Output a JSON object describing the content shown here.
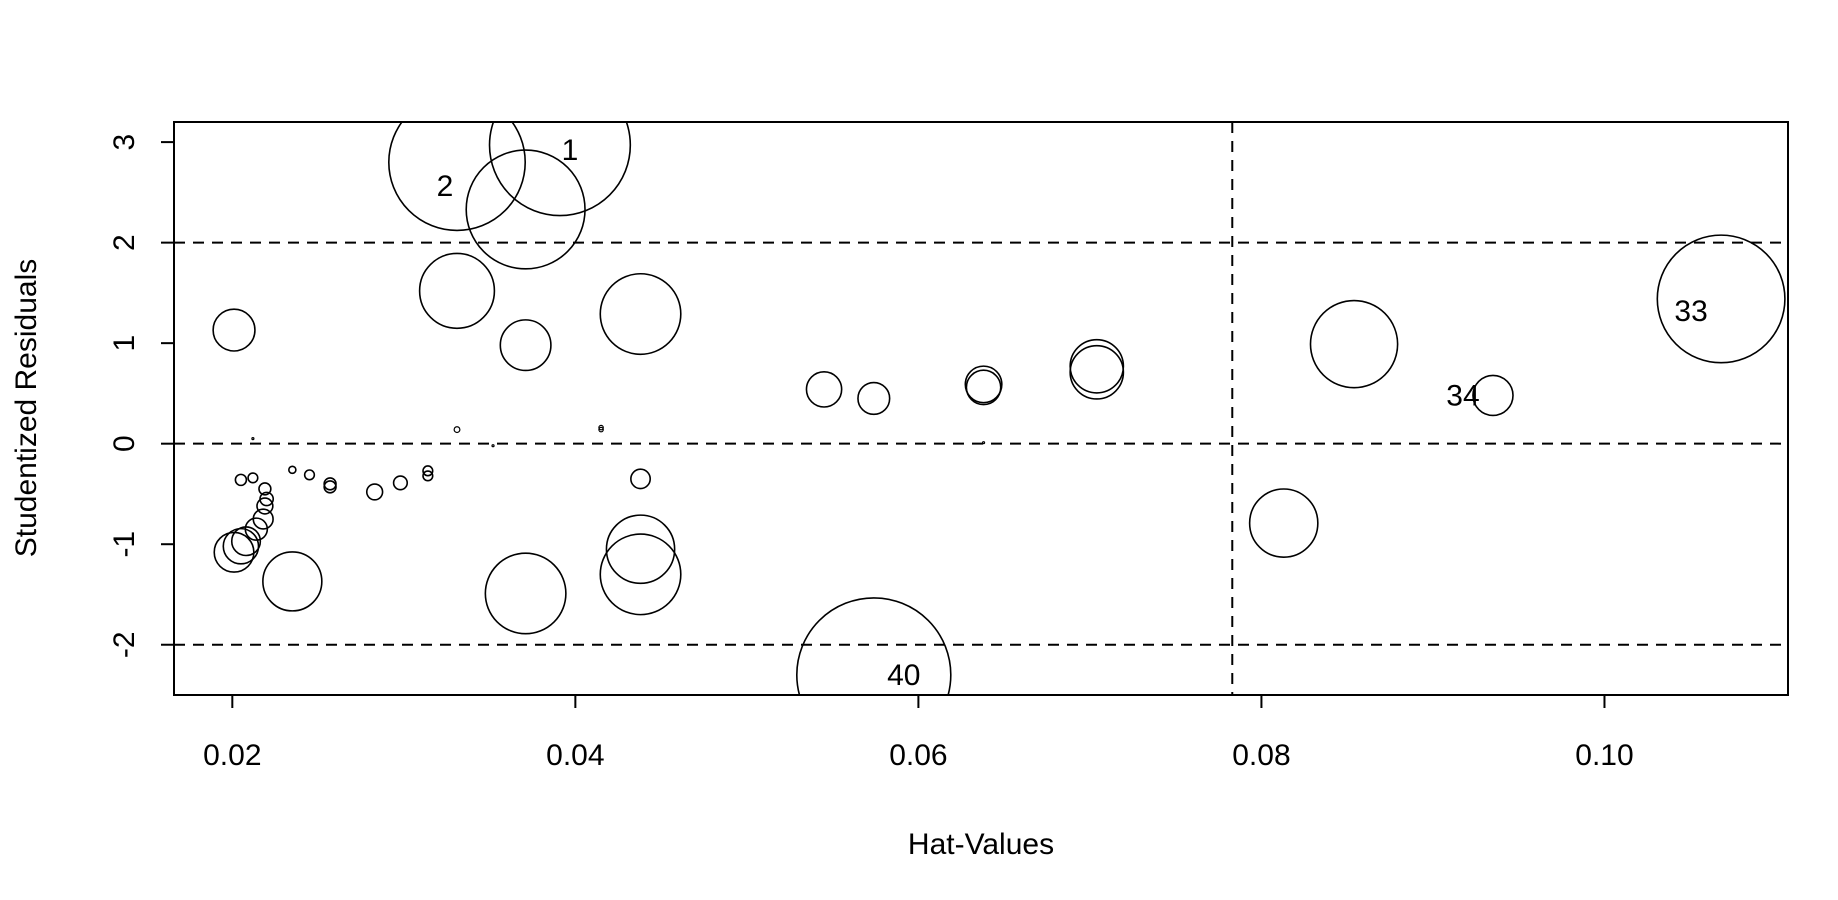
{
  "chart_data": {
    "type": "scatter",
    "title": "",
    "xlabel": "Hat-Values",
    "ylabel": "Studentized Residuals",
    "xlim": [
      0.0166,
      0.1107
    ],
    "ylim": [
      -2.5,
      3.2
    ],
    "xticks": [
      0.02,
      0.04,
      0.06,
      0.08,
      0.1
    ],
    "xtick_labels": [
      "0.02",
      "0.04",
      "0.06",
      "0.08",
      "0.10"
    ],
    "yticks": [
      -2,
      -1,
      0,
      1,
      2,
      3
    ],
    "ytick_labels": [
      "-2",
      "-1",
      "0",
      "1",
      "2",
      "3"
    ],
    "reference_lines": {
      "horizontal": [
        -2,
        0,
        2
      ],
      "vertical": [
        0.0783
      ],
      "style": "dashed"
    },
    "bubble_size_measure": "Cook's distance (relative)",
    "points": [
      {
        "hat": 0.0391,
        "rstudent": 2.97,
        "size": 0.32,
        "label": "1"
      },
      {
        "hat": 0.0331,
        "rstudent": 2.8,
        "size": 0.31,
        "label": "2"
      },
      {
        "hat": 0.0371,
        "rstudent": 2.33,
        "size": 0.27
      },
      {
        "hat": 0.0331,
        "rstudent": 1.52,
        "size": 0.17
      },
      {
        "hat": 0.0371,
        "rstudent": 0.98,
        "size": 0.115
      },
      {
        "hat": 0.0438,
        "rstudent": 1.29,
        "size": 0.183
      },
      {
        "hat": 0.0201,
        "rstudent": 1.13,
        "size": 0.095
      },
      {
        "hat": 0.0545,
        "rstudent": 0.54,
        "size": 0.08
      },
      {
        "hat": 0.0574,
        "rstudent": 0.45,
        "size": 0.072
      },
      {
        "hat": 0.0638,
        "rstudent": 0.59,
        "size": 0.083
      },
      {
        "hat": 0.0638,
        "rstudent": 0.56,
        "size": 0.078
      },
      {
        "hat": 0.0704,
        "rstudent": 0.77,
        "size": 0.121
      },
      {
        "hat": 0.0704,
        "rstudent": 0.71,
        "size": 0.121
      },
      {
        "hat": 0.0854,
        "rstudent": 0.99,
        "size": 0.198
      },
      {
        "hat": 0.0935,
        "rstudent": 0.48,
        "size": 0.091,
        "label": "34"
      },
      {
        "hat": 0.1068,
        "rstudent": 1.44,
        "size": 0.29,
        "label": "33"
      },
      {
        "hat": 0.0813,
        "rstudent": -0.79,
        "size": 0.155
      },
      {
        "hat": 0.0574,
        "rstudent": -2.3,
        "size": 0.35,
        "label": "40"
      },
      {
        "hat": 0.0371,
        "rstudent": -1.49,
        "size": 0.183
      },
      {
        "hat": 0.0438,
        "rstudent": -1.05,
        "size": 0.155
      },
      {
        "hat": 0.0438,
        "rstudent": -1.3,
        "size": 0.183
      },
      {
        "hat": 0.0438,
        "rstudent": -0.35,
        "size": 0.044
      },
      {
        "hat": 0.0235,
        "rstudent": -1.37,
        "size": 0.134
      },
      {
        "hat": 0.0201,
        "rstudent": -1.08,
        "size": 0.09
      },
      {
        "hat": 0.0205,
        "rstudent": -1.02,
        "size": 0.08
      },
      {
        "hat": 0.0208,
        "rstudent": -0.97,
        "size": 0.065
      },
      {
        "hat": 0.0214,
        "rstudent": -0.85,
        "size": 0.05
      },
      {
        "hat": 0.0218,
        "rstudent": -0.75,
        "size": 0.045
      },
      {
        "hat": 0.0219,
        "rstudent": -0.62,
        "size": 0.036
      },
      {
        "hat": 0.022,
        "rstudent": -0.55,
        "size": 0.03
      },
      {
        "hat": 0.0219,
        "rstudent": -0.45,
        "size": 0.027
      },
      {
        "hat": 0.0205,
        "rstudent": -0.36,
        "size": 0.025
      },
      {
        "hat": 0.0212,
        "rstudent": -0.34,
        "size": 0.022
      },
      {
        "hat": 0.0235,
        "rstudent": -0.26,
        "size": 0.016
      },
      {
        "hat": 0.0245,
        "rstudent": -0.31,
        "size": 0.022
      },
      {
        "hat": 0.0257,
        "rstudent": -0.4,
        "size": 0.027
      },
      {
        "hat": 0.0257,
        "rstudent": -0.43,
        "size": 0.027
      },
      {
        "hat": 0.0283,
        "rstudent": -0.48,
        "size": 0.036
      },
      {
        "hat": 0.0298,
        "rstudent": -0.39,
        "size": 0.031
      },
      {
        "hat": 0.0314,
        "rstudent": -0.27,
        "size": 0.022
      },
      {
        "hat": 0.0314,
        "rstudent": -0.32,
        "size": 0.022
      },
      {
        "hat": 0.0331,
        "rstudent": 0.14,
        "size": 0.013
      },
      {
        "hat": 0.0415,
        "rstudent": 0.16,
        "size": 0.01
      },
      {
        "hat": 0.0415,
        "rstudent": 0.14,
        "size": 0.01
      },
      {
        "hat": 0.0212,
        "rstudent": 0.05,
        "size": 0.003
      },
      {
        "hat": 0.0638,
        "rstudent": 0.01,
        "size": 0.002
      },
      {
        "hat": 0.0352,
        "rstudent": -0.02,
        "size": 0.002
      }
    ]
  }
}
